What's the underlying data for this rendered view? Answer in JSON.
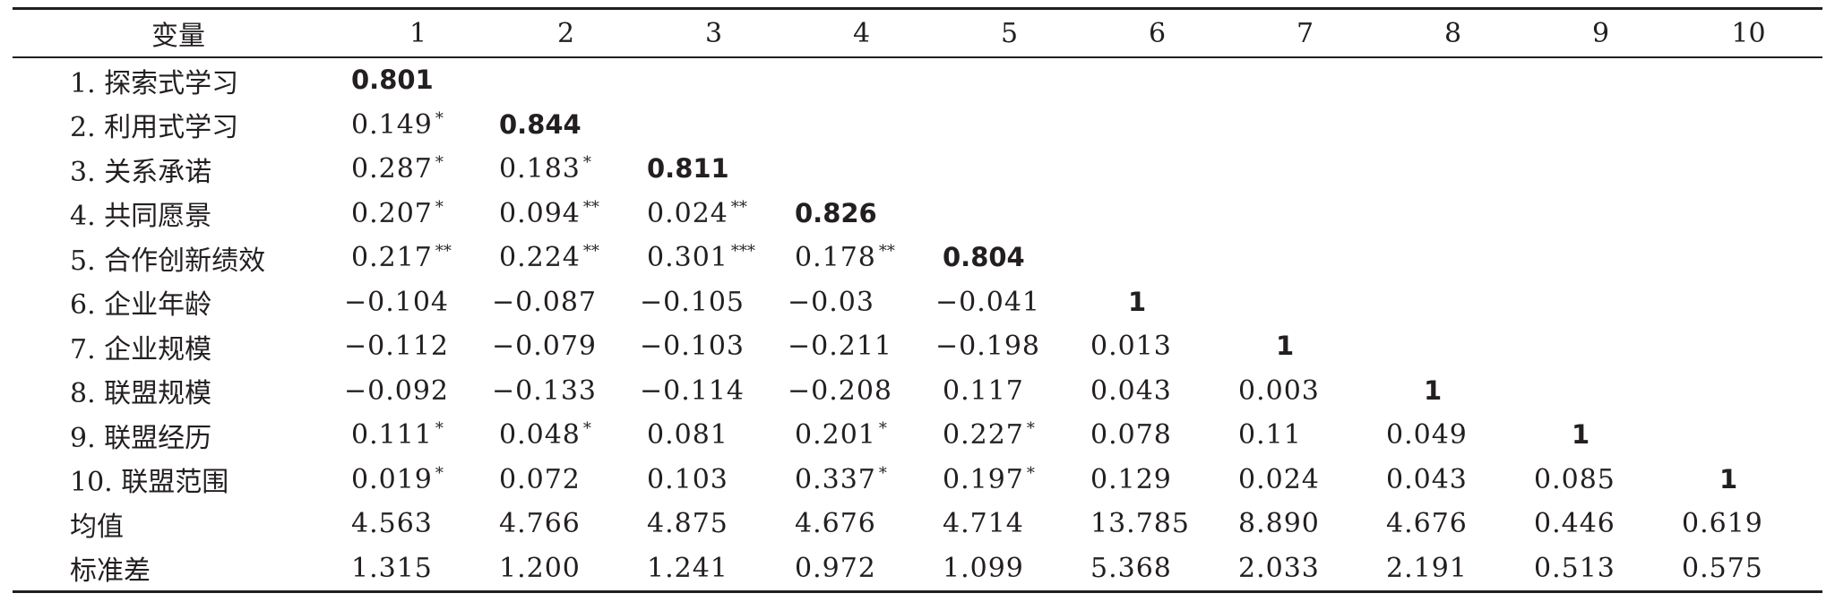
{
  "table": {
    "header": {
      "label": "变量",
      "columns": [
        "1",
        "2",
        "3",
        "4",
        "5",
        "6",
        "7",
        "8",
        "9",
        "10"
      ]
    },
    "rows": [
      {
        "label": "1. 探索式学习",
        "cells": [
          {
            "v": "0.801",
            "s": "",
            "d": true
          }
        ]
      },
      {
        "label": "2. 利用式学习",
        "cells": [
          {
            "v": "0.149",
            "s": "*"
          },
          {
            "v": "0.844",
            "s": "",
            "d": true
          }
        ]
      },
      {
        "label": "3. 关系承诺",
        "cells": [
          {
            "v": "0.287",
            "s": "*"
          },
          {
            "v": "0.183",
            "s": "*"
          },
          {
            "v": "0.811",
            "s": "",
            "d": true
          }
        ]
      },
      {
        "label": "4. 共同愿景",
        "cells": [
          {
            "v": "0.207",
            "s": "*"
          },
          {
            "v": "0.094",
            "s": "**"
          },
          {
            "v": "0.024",
            "s": "**"
          },
          {
            "v": "0.826",
            "s": "",
            "d": true
          }
        ]
      },
      {
        "label": "5. 合作创新绩效",
        "cells": [
          {
            "v": "0.217",
            "s": "**"
          },
          {
            "v": "0.224",
            "s": "**"
          },
          {
            "v": "0.301",
            "s": "***"
          },
          {
            "v": "0.178",
            "s": "**"
          },
          {
            "v": "0.804",
            "s": "",
            "d": true
          }
        ]
      },
      {
        "label": "6. 企业年龄",
        "cells": [
          {
            "v": "−0.104",
            "s": ""
          },
          {
            "v": "−0.087",
            "s": ""
          },
          {
            "v": "−0.105",
            "s": ""
          },
          {
            "v": "−0.03",
            "s": ""
          },
          {
            "v": "−0.041",
            "s": ""
          },
          {
            "v": "1",
            "s": "",
            "d": true
          }
        ]
      },
      {
        "label": "7. 企业规模",
        "cells": [
          {
            "v": "−0.112",
            "s": ""
          },
          {
            "v": "−0.079",
            "s": ""
          },
          {
            "v": "−0.103",
            "s": ""
          },
          {
            "v": "−0.211",
            "s": ""
          },
          {
            "v": "−0.198",
            "s": ""
          },
          {
            "v": "0.013",
            "s": ""
          },
          {
            "v": "1",
            "s": "",
            "d": true
          }
        ]
      },
      {
        "label": "8. 联盟规模",
        "cells": [
          {
            "v": "−0.092",
            "s": ""
          },
          {
            "v": "−0.133",
            "s": ""
          },
          {
            "v": "−0.114",
            "s": ""
          },
          {
            "v": "−0.208",
            "s": ""
          },
          {
            "v": "0.117",
            "s": ""
          },
          {
            "v": "0.043",
            "s": ""
          },
          {
            "v": "0.003",
            "s": ""
          },
          {
            "v": "1",
            "s": "",
            "d": true
          }
        ]
      },
      {
        "label": "9. 联盟经历",
        "cells": [
          {
            "v": "0.111",
            "s": "*"
          },
          {
            "v": "0.048",
            "s": "*"
          },
          {
            "v": "0.081",
            "s": ""
          },
          {
            "v": "0.201",
            "s": "*"
          },
          {
            "v": "0.227",
            "s": "*"
          },
          {
            "v": "0.078",
            "s": ""
          },
          {
            "v": "0.11",
            "s": ""
          },
          {
            "v": "0.049",
            "s": ""
          },
          {
            "v": "1",
            "s": "",
            "d": true
          }
        ]
      },
      {
        "label": "10. 联盟范围",
        "cells": [
          {
            "v": "0.019",
            "s": "*"
          },
          {
            "v": "0.072",
            "s": ""
          },
          {
            "v": "0.103",
            "s": ""
          },
          {
            "v": "0.337",
            "s": "*"
          },
          {
            "v": "0.197",
            "s": "*"
          },
          {
            "v": "0.129",
            "s": ""
          },
          {
            "v": "0.024",
            "s": ""
          },
          {
            "v": "0.043",
            "s": ""
          },
          {
            "v": "0.085",
            "s": ""
          },
          {
            "v": "1",
            "s": "",
            "d": true
          }
        ]
      },
      {
        "label": "均值",
        "cells": [
          {
            "v": "4.563",
            "s": ""
          },
          {
            "v": "4.766",
            "s": ""
          },
          {
            "v": "4.875",
            "s": ""
          },
          {
            "v": "4.676",
            "s": ""
          },
          {
            "v": "4.714",
            "s": ""
          },
          {
            "v": "13.785",
            "s": ""
          },
          {
            "v": "8.890",
            "s": ""
          },
          {
            "v": "4.676",
            "s": ""
          },
          {
            "v": "0.446",
            "s": ""
          },
          {
            "v": "0.619",
            "s": ""
          }
        ]
      },
      {
        "label": "标准差",
        "cells": [
          {
            "v": "1.315",
            "s": ""
          },
          {
            "v": "1.200",
            "s": ""
          },
          {
            "v": "1.241",
            "s": ""
          },
          {
            "v": "0.972",
            "s": ""
          },
          {
            "v": "1.099",
            "s": ""
          },
          {
            "v": "5.368",
            "s": ""
          },
          {
            "v": "2.033",
            "s": ""
          },
          {
            "v": "2.191",
            "s": ""
          },
          {
            "v": "0.513",
            "s": ""
          },
          {
            "v": "0.575",
            "s": ""
          }
        ]
      }
    ]
  }
}
